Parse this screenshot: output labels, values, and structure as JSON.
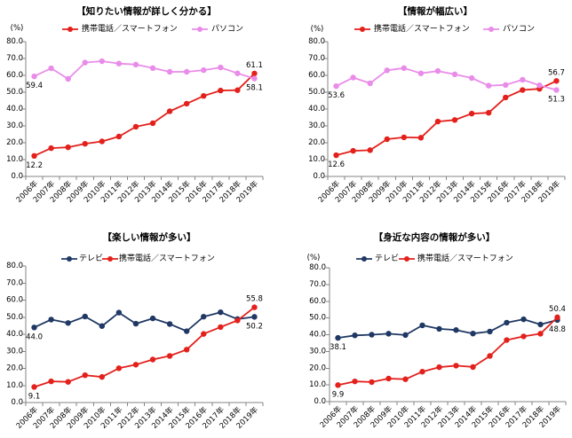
{
  "chart_data": [
    {
      "type": "line",
      "title": "【知りたい情報が詳しく分かる】",
      "ylabel": "(%)",
      "ylim": [
        0,
        80
      ],
      "ytick_labels": [
        "0.0",
        "10.0",
        "20.0",
        "30.0",
        "40.0",
        "50.0",
        "60.0",
        "70.0",
        "80.0"
      ],
      "categories": [
        "2006年",
        "2007年",
        "2008年",
        "2009年",
        "2010年",
        "2011年",
        "2012年",
        "2013年",
        "2014年",
        "2015年",
        "2016年",
        "2017年",
        "2018年",
        "2019年"
      ],
      "grid": false,
      "legend_position": "top",
      "series": [
        {
          "name": "携帯電話／スマートフォン",
          "color": "#e3201b",
          "values": [
            12.2,
            16.8,
            17.3,
            19.4,
            20.8,
            23.7,
            29.5,
            31.6,
            38.7,
            43.2,
            47.8,
            51.0,
            51.2,
            61.1
          ]
        },
        {
          "name": "パソコン",
          "color": "#e98ce9",
          "values": [
            59.4,
            64.2,
            57.9,
            67.6,
            68.4,
            67.0,
            66.4,
            64.3,
            62.1,
            62.1,
            63.1,
            64.7,
            61.2,
            58.1
          ]
        }
      ]
    },
    {
      "type": "line",
      "title": "【情報が幅広い】",
      "ylabel": "(%)",
      "ylim": [
        0,
        80
      ],
      "ytick_labels": [
        "0.0",
        "10.0",
        "20.0",
        "30.0",
        "40.0",
        "50.0",
        "60.0",
        "70.0",
        "80.0"
      ],
      "categories": [
        "2006年",
        "2007年",
        "2008年",
        "2009年",
        "2010年",
        "2011年",
        "2012年",
        "2013年",
        "2014年",
        "2015年",
        "2016年",
        "2017年",
        "2018年",
        "2019年"
      ],
      "grid": false,
      "legend_position": "top",
      "series": [
        {
          "name": "携帯電話／スマートフォン",
          "color": "#e3201b",
          "values": [
            12.6,
            15.2,
            15.6,
            22.1,
            23.2,
            23.0,
            32.6,
            33.5,
            37.3,
            37.8,
            46.9,
            51.3,
            52.0,
            56.7
          ]
        },
        {
          "name": "パソコン",
          "color": "#e98ce9",
          "values": [
            53.6,
            58.7,
            55.3,
            63.0,
            64.3,
            61.2,
            62.6,
            60.6,
            58.4,
            53.9,
            54.3,
            57.4,
            54.1,
            51.3
          ]
        }
      ]
    },
    {
      "type": "line",
      "title": "【楽しい情報が多い】",
      "ylabel": "",
      "ylim": [
        0,
        80
      ],
      "ytick_labels": [
        "0.0",
        "10.0",
        "20.0",
        "30.0",
        "40.0",
        "50.0",
        "60.0",
        "70.0",
        "80.0"
      ],
      "categories": [
        "2006年",
        "2007年",
        "2008年",
        "2009年",
        "2010年",
        "2011年",
        "2012年",
        "2013年",
        "2014年",
        "2015年",
        "2016年",
        "2017年",
        "2018年",
        "2019年"
      ],
      "grid": false,
      "legend_position": "top",
      "series": [
        {
          "name": "テレビ",
          "color": "#1f3864",
          "values": [
            44.0,
            48.6,
            46.6,
            50.4,
            44.8,
            52.7,
            46.2,
            49.3,
            46.0,
            41.8,
            50.3,
            52.9,
            48.9,
            50.2
          ]
        },
        {
          "name": "携帯電話／スマートフォン",
          "color": "#e3201b",
          "values": [
            9.1,
            12.4,
            12.1,
            16.0,
            15.0,
            20.1,
            22.2,
            25.2,
            27.3,
            31.0,
            40.2,
            44.2,
            48.1,
            55.8
          ]
        }
      ]
    },
    {
      "type": "line",
      "title": "【身近な内容の情報が多い】",
      "ylabel": "(%)",
      "ylim": [
        0,
        80
      ],
      "ytick_labels": [
        "0.0",
        "10.0",
        "20.0",
        "30.0",
        "40.0",
        "50.0",
        "60.0",
        "70.0",
        "80.0"
      ],
      "categories": [
        "2006年",
        "2007年",
        "2008年",
        "2009年",
        "2010年",
        "2011年",
        "2012年",
        "2013年",
        "2014年",
        "2015年",
        "2016年",
        "2017年",
        "2018年",
        "2019年"
      ],
      "grid": false,
      "legend_position": "top",
      "series": [
        {
          "name": "テレビ",
          "color": "#1f3864",
          "values": [
            38.1,
            39.6,
            40.0,
            40.6,
            39.8,
            45.6,
            43.5,
            42.8,
            40.7,
            41.9,
            47.2,
            49.2,
            46.1,
            48.8
          ]
        },
        {
          "name": "携帯電話／スマートフォン",
          "color": "#e3201b",
          "values": [
            9.9,
            12.1,
            11.7,
            13.8,
            13.4,
            17.9,
            20.6,
            21.5,
            20.7,
            27.3,
            36.8,
            39.0,
            40.6,
            50.4
          ]
        }
      ]
    }
  ]
}
